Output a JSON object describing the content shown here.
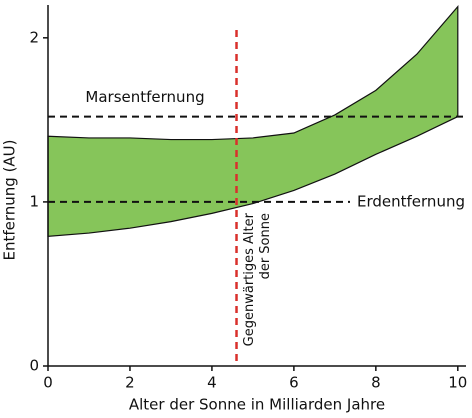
{
  "chart_data": {
    "type": "range_area",
    "x_label": "Alter der Sonne in Milliarden Jahre",
    "y_label": "Entfernung (AU)",
    "x": [
      0,
      1,
      2,
      3,
      4,
      5,
      6,
      7,
      8,
      9,
      10
    ],
    "upper": [
      1.4,
      1.39,
      1.39,
      1.38,
      1.38,
      1.39,
      1.42,
      1.53,
      1.68,
      1.9,
      2.19
    ],
    "lower": [
      0.79,
      0.81,
      0.84,
      0.88,
      0.93,
      0.99,
      1.07,
      1.17,
      1.29,
      1.4,
      1.52
    ],
    "color": "#86c55a",
    "xlim": [
      0,
      10.2
    ],
    "ylim": [
      0,
      2.2
    ],
    "xticks": [
      0,
      2,
      4,
      6,
      8,
      10
    ],
    "yticks": [
      0,
      1,
      2
    ],
    "hlines": [
      {
        "value": 1.52,
        "label": "Marsentfernung"
      },
      {
        "value": 1,
        "label": "Erdentfernung"
      }
    ],
    "vline": {
      "value": 4.6,
      "color": "#d9302c",
      "label": [
        "Gegenwärtiges Alter",
        "der Sonne"
      ]
    }
  }
}
